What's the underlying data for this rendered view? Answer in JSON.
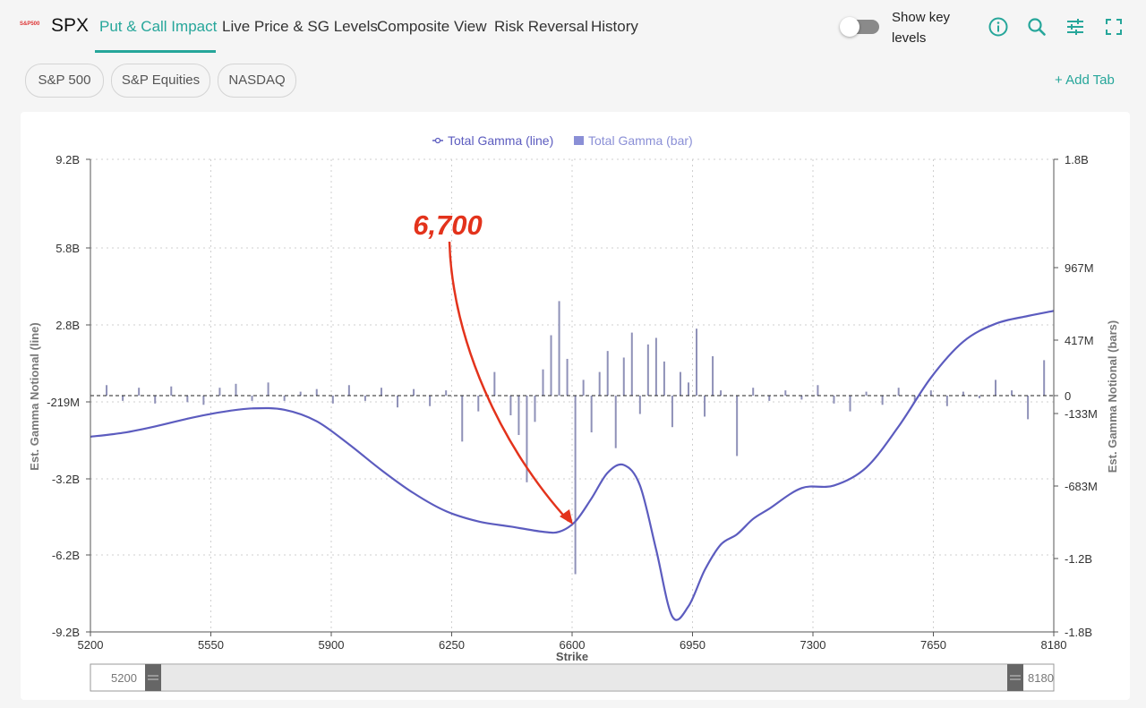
{
  "header": {
    "logo_text": "S&P500",
    "ticker": "SPX",
    "tabs": [
      {
        "label": "Put & Call Impact",
        "active": true
      },
      {
        "label": "Live Price & SG Levels",
        "active": false
      },
      {
        "label": "Composite View",
        "active": false
      },
      {
        "label": "Risk Reversal",
        "active": false
      },
      {
        "label": "History",
        "active": false
      }
    ],
    "toggle_label": "Show key levels",
    "toggle_on": false,
    "icons": [
      "info-icon",
      "search-icon",
      "sliders-icon",
      "fullscreen-icon"
    ],
    "accent_color": "#26a69a"
  },
  "pills": [
    "S&P 500",
    "S&P Equities",
    "NASDAQ"
  ],
  "add_tab_label": "+ Add Tab",
  "annotation": {
    "text": "6,700",
    "color": "#e3331c"
  },
  "range_slider": {
    "min_label": "5200",
    "max_label": "8180"
  },
  "chart_data": {
    "type": "bar",
    "legend": [
      {
        "name": "Total Gamma (line)",
        "type": "line",
        "color": "#5c5cbf"
      },
      {
        "name": "Total Gamma (bar)",
        "type": "bar",
        "color": "#8a8fd6"
      }
    ],
    "legend_position": "top-center",
    "xlabel": "Strike",
    "ylabel_left": "Est. Gamma Notional (line)",
    "ylabel_right": "Est. Gamma Notional (bars)",
    "x_range": [
      5200,
      8180
    ],
    "x_ticks": [
      "5200",
      "5550",
      "5900",
      "6250",
      "6600",
      "6950",
      "7300",
      "7650",
      "8180"
    ],
    "y_left_range_billion": [
      -9.2,
      9.2
    ],
    "y_left_ticks": [
      "9.2B",
      "5.8B",
      "2.8B",
      "-219M",
      "-3.2B",
      "-6.2B",
      "-9.2B"
    ],
    "y_right_range_billion": [
      -1.8,
      1.8
    ],
    "y_right_ticks": [
      "1.8B",
      "967M",
      "417M",
      "0",
      "-133M",
      "-683M",
      "-1.2B",
      "-1.8B"
    ],
    "grid": true,
    "line_series": {
      "name": "Total Gamma (line)",
      "x": [
        5200,
        5300,
        5400,
        5500,
        5600,
        5700,
        5800,
        5900,
        6000,
        6100,
        6200,
        6300,
        6400,
        6500,
        6600,
        6650,
        6700,
        6750,
        6800,
        6850,
        6900,
        6950,
        7000,
        7050,
        7100,
        7150,
        7200,
        7250,
        7300,
        7400,
        7500,
        7600,
        7700,
        7800,
        7900,
        8000,
        8100,
        8180
      ],
      "y_billion": [
        -1.6,
        -1.45,
        -1.2,
        -0.9,
        -0.65,
        -0.5,
        -0.55,
        -1.0,
        -1.9,
        -2.9,
        -3.8,
        -4.5,
        -4.9,
        -5.1,
        -5.3,
        -5.3,
        -4.9,
        -4.0,
        -3.0,
        -2.7,
        -3.5,
        -6.0,
        -8.6,
        -8.2,
        -6.8,
        -5.8,
        -5.4,
        -4.8,
        -4.4,
        -3.6,
        -3.5,
        -2.8,
        -1.2,
        0.7,
        2.1,
        2.8,
        3.1,
        3.3
      ]
    },
    "bar_series": {
      "name": "Total Gamma (bar)",
      "x": [
        5250,
        5300,
        5350,
        5400,
        5450,
        5500,
        5550,
        5600,
        5650,
        5700,
        5750,
        5800,
        5850,
        5900,
        5950,
        6000,
        6050,
        6100,
        6150,
        6200,
        6250,
        6300,
        6350,
        6400,
        6450,
        6500,
        6525,
        6550,
        6575,
        6600,
        6625,
        6650,
        6675,
        6700,
        6725,
        6750,
        6775,
        6800,
        6825,
        6850,
        6875,
        6900,
        6925,
        6950,
        6975,
        7000,
        7025,
        7050,
        7075,
        7100,
        7125,
        7150,
        7200,
        7250,
        7300,
        7350,
        7400,
        7450,
        7500,
        7550,
        7600,
        7650,
        7700,
        7750,
        7800,
        7850,
        7900,
        7950,
        8000,
        8050,
        8100,
        8150
      ],
      "y_million": [
        80,
        -40,
        60,
        -60,
        70,
        -50,
        -70,
        60,
        90,
        -40,
        100,
        -40,
        30,
        50,
        -60,
        80,
        -40,
        60,
        -90,
        50,
        -80,
        40,
        -350,
        -120,
        180,
        -150,
        -300,
        -660,
        -200,
        200,
        460,
        720,
        280,
        -1360,
        120,
        -280,
        180,
        340,
        -400,
        290,
        480,
        -140,
        390,
        440,
        260,
        -240,
        180,
        100,
        510,
        -160,
        300,
        40,
        -460,
        60,
        -40,
        40,
        -30,
        80,
        -60,
        -120,
        30,
        -70,
        60,
        -40,
        40,
        -80,
        30,
        -20,
        120,
        40,
        -180,
        270
      ]
    }
  }
}
